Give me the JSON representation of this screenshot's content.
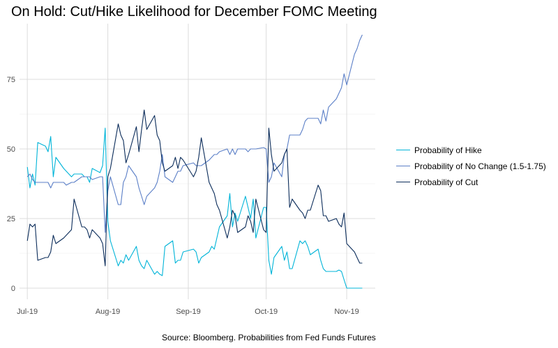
{
  "chart_data": {
    "type": "line",
    "title": "On Hold: Cut/Hike Likelihood for December FOMC Meeting",
    "caption": "Source: Bloomberg. Probabilities from Fed Funds Futures",
    "xlabel": "",
    "ylabel": "",
    "x_ticks": [
      "Jul-19",
      "Aug-19",
      "Sep-19",
      "Oct-19",
      "Nov-19"
    ],
    "x_tick_dates": [
      "2019-07-01",
      "2019-08-01",
      "2019-09-01",
      "2019-10-01",
      "2019-11-01"
    ],
    "y_ticks": [
      0,
      25,
      50,
      75
    ],
    "xlim": [
      "2019-06-28",
      "2019-11-12"
    ],
    "ylim": [
      -4,
      95
    ],
    "grid": true,
    "legend_position": "right",
    "series": [
      {
        "name": "Probability of Hike",
        "color": "#00b4d8",
        "points": [
          [
            "2019-07-01",
            43.5
          ],
          [
            "2019-07-02",
            36
          ],
          [
            "2019-07-03",
            41
          ],
          [
            "2019-07-04",
            37
          ],
          [
            "2019-07-05",
            52.3
          ],
          [
            "2019-07-08",
            51
          ],
          [
            "2019-07-09",
            49
          ],
          [
            "2019-07-10",
            54.5
          ],
          [
            "2019-07-11",
            40
          ],
          [
            "2019-07-12",
            47
          ],
          [
            "2019-07-15",
            43
          ],
          [
            "2019-07-16",
            42
          ],
          [
            "2019-07-18",
            40
          ],
          [
            "2019-07-19",
            41
          ],
          [
            "2019-07-22",
            41
          ],
          [
            "2019-07-23",
            40
          ],
          [
            "2019-07-24",
            40
          ],
          [
            "2019-07-25",
            38
          ],
          [
            "2019-07-26",
            43
          ],
          [
            "2019-07-29",
            41.5
          ],
          [
            "2019-07-30",
            44
          ],
          [
            "2019-07-31",
            57.5
          ],
          [
            "2019-08-01",
            24
          ],
          [
            "2019-08-02",
            17
          ],
          [
            "2019-08-05",
            8
          ],
          [
            "2019-08-06",
            10
          ],
          [
            "2019-08-07",
            9
          ],
          [
            "2019-08-08",
            12
          ],
          [
            "2019-08-09",
            10
          ],
          [
            "2019-08-12",
            15
          ],
          [
            "2019-08-13",
            10
          ],
          [
            "2019-08-14",
            8
          ],
          [
            "2019-08-15",
            7
          ],
          [
            "2019-08-16",
            10
          ],
          [
            "2019-08-19",
            5
          ],
          [
            "2019-08-20",
            6
          ],
          [
            "2019-08-21",
            5
          ],
          [
            "2019-08-22",
            4.5
          ],
          [
            "2019-08-23",
            15
          ],
          [
            "2019-08-26",
            17
          ],
          [
            "2019-08-27",
            9
          ],
          [
            "2019-08-28",
            10
          ],
          [
            "2019-08-29",
            10
          ],
          [
            "2019-08-30",
            13
          ],
          [
            "2019-09-03",
            14
          ],
          [
            "2019-09-04",
            13
          ],
          [
            "2019-09-05",
            9
          ],
          [
            "2019-09-06",
            11
          ],
          [
            "2019-09-09",
            13
          ],
          [
            "2019-09-10",
            15
          ],
          [
            "2019-09-11",
            14
          ],
          [
            "2019-09-12",
            18
          ],
          [
            "2019-09-13",
            22
          ],
          [
            "2019-09-16",
            26
          ],
          [
            "2019-09-17",
            34
          ],
          [
            "2019-09-18",
            22
          ],
          [
            "2019-09-19",
            27
          ],
          [
            "2019-09-20",
            24
          ],
          [
            "2019-09-23",
            33
          ],
          [
            "2019-09-24",
            29
          ],
          [
            "2019-09-25",
            25
          ],
          [
            "2019-09-26",
            32
          ],
          [
            "2019-09-27",
            18
          ],
          [
            "2019-09-30",
            29
          ],
          [
            "2019-10-01",
            29
          ],
          [
            "2019-10-02",
            10
          ],
          [
            "2019-10-03",
            5
          ],
          [
            "2019-10-04",
            11
          ],
          [
            "2019-10-07",
            15
          ],
          [
            "2019-10-08",
            10
          ],
          [
            "2019-10-09",
            13
          ],
          [
            "2019-10-10",
            7
          ],
          [
            "2019-10-11",
            7
          ],
          [
            "2019-10-14",
            17
          ],
          [
            "2019-10-15",
            16
          ],
          [
            "2019-10-16",
            17
          ],
          [
            "2019-10-17",
            15
          ],
          [
            "2019-10-18",
            12
          ],
          [
            "2019-10-21",
            14
          ],
          [
            "2019-10-22",
            10
          ],
          [
            "2019-10-23",
            7
          ],
          [
            "2019-10-24",
            6
          ],
          [
            "2019-10-25",
            6
          ],
          [
            "2019-10-28",
            6
          ],
          [
            "2019-10-29",
            6.5
          ],
          [
            "2019-10-30",
            6
          ],
          [
            "2019-10-31",
            3
          ],
          [
            "2019-11-01",
            0
          ],
          [
            "2019-11-04",
            0
          ],
          [
            "2019-11-05",
            0
          ],
          [
            "2019-11-06",
            0
          ],
          [
            "2019-11-07",
            0
          ]
        ]
      },
      {
        "name": "Probability of No Change (1.5-1.75)",
        "color": "#5b7fc7",
        "points": [
          [
            "2019-07-01",
            40
          ],
          [
            "2019-07-02",
            41
          ],
          [
            "2019-07-03",
            39
          ],
          [
            "2019-07-04",
            38
          ],
          [
            "2019-07-05",
            38
          ],
          [
            "2019-07-08",
            38
          ],
          [
            "2019-07-09",
            38
          ],
          [
            "2019-07-10",
            36
          ],
          [
            "2019-07-11",
            38
          ],
          [
            "2019-07-12",
            38
          ],
          [
            "2019-07-15",
            38
          ],
          [
            "2019-07-16",
            37
          ],
          [
            "2019-07-18",
            38
          ],
          [
            "2019-07-19",
            38
          ],
          [
            "2019-07-22",
            40
          ],
          [
            "2019-07-23",
            40
          ],
          [
            "2019-07-24",
            40
          ],
          [
            "2019-07-25",
            40
          ],
          [
            "2019-07-26",
            39
          ],
          [
            "2019-07-29",
            40
          ],
          [
            "2019-07-30",
            40
          ],
          [
            "2019-07-31",
            20
          ],
          [
            "2019-08-01",
            35
          ],
          [
            "2019-08-02",
            40
          ],
          [
            "2019-08-05",
            30
          ],
          [
            "2019-08-06",
            30
          ],
          [
            "2019-08-07",
            38
          ],
          [
            "2019-08-08",
            40
          ],
          [
            "2019-08-09",
            44
          ],
          [
            "2019-08-12",
            40
          ],
          [
            "2019-08-13",
            36
          ],
          [
            "2019-08-14",
            33
          ],
          [
            "2019-08-15",
            30
          ],
          [
            "2019-08-16",
            33
          ],
          [
            "2019-08-19",
            36
          ],
          [
            "2019-08-20",
            38
          ],
          [
            "2019-08-21",
            42
          ],
          [
            "2019-08-22",
            48
          ],
          [
            "2019-08-23",
            40
          ],
          [
            "2019-08-26",
            38
          ],
          [
            "2019-08-27",
            40
          ],
          [
            "2019-08-28",
            42
          ],
          [
            "2019-08-29",
            42
          ],
          [
            "2019-08-30",
            44
          ],
          [
            "2019-09-03",
            45
          ],
          [
            "2019-09-04",
            44
          ],
          [
            "2019-09-05",
            44
          ],
          [
            "2019-09-06",
            44
          ],
          [
            "2019-09-09",
            46
          ],
          [
            "2019-09-10",
            47
          ],
          [
            "2019-09-11",
            48
          ],
          [
            "2019-09-12",
            48
          ],
          [
            "2019-09-13",
            49
          ],
          [
            "2019-09-16",
            50
          ],
          [
            "2019-09-17",
            48
          ],
          [
            "2019-09-18",
            50
          ],
          [
            "2019-09-19",
            48
          ],
          [
            "2019-09-20",
            50
          ],
          [
            "2019-09-23",
            50
          ],
          [
            "2019-09-24",
            49
          ],
          [
            "2019-09-25",
            50
          ],
          [
            "2019-09-26",
            50
          ],
          [
            "2019-09-27",
            50
          ],
          [
            "2019-09-30",
            50.5
          ],
          [
            "2019-10-01",
            50
          ],
          [
            "2019-10-02",
            38
          ],
          [
            "2019-10-03",
            40
          ],
          [
            "2019-10-04",
            45
          ],
          [
            "2019-10-07",
            40
          ],
          [
            "2019-10-08",
            48
          ],
          [
            "2019-10-09",
            50
          ],
          [
            "2019-10-10",
            55
          ],
          [
            "2019-10-11",
            55
          ],
          [
            "2019-10-14",
            55
          ],
          [
            "2019-10-15",
            57
          ],
          [
            "2019-10-16",
            60
          ],
          [
            "2019-10-17",
            61
          ],
          [
            "2019-10-18",
            61
          ],
          [
            "2019-10-21",
            61
          ],
          [
            "2019-10-22",
            59
          ],
          [
            "2019-10-23",
            64
          ],
          [
            "2019-10-24",
            60
          ],
          [
            "2019-10-25",
            65
          ],
          [
            "2019-10-28",
            68
          ],
          [
            "2019-10-29",
            70
          ],
          [
            "2019-10-30",
            72
          ],
          [
            "2019-10-31",
            77
          ],
          [
            "2019-11-01",
            73
          ],
          [
            "2019-11-04",
            84
          ],
          [
            "2019-11-05",
            86
          ],
          [
            "2019-11-06",
            89
          ],
          [
            "2019-11-07",
            91
          ]
        ]
      },
      {
        "name": "Probability of Cut",
        "color": "#0b2c5a",
        "points": [
          [
            "2019-07-01",
            17
          ],
          [
            "2019-07-02",
            23
          ],
          [
            "2019-07-03",
            22
          ],
          [
            "2019-07-04",
            23
          ],
          [
            "2019-07-05",
            10
          ],
          [
            "2019-07-08",
            11
          ],
          [
            "2019-07-09",
            11
          ],
          [
            "2019-07-10",
            13
          ],
          [
            "2019-07-11",
            19
          ],
          [
            "2019-07-12",
            16
          ],
          [
            "2019-07-15",
            18
          ],
          [
            "2019-07-16",
            19
          ],
          [
            "2019-07-18",
            21
          ],
          [
            "2019-07-19",
            32
          ],
          [
            "2019-07-22",
            22
          ],
          [
            "2019-07-23",
            22
          ],
          [
            "2019-07-24",
            21
          ],
          [
            "2019-07-25",
            18
          ],
          [
            "2019-07-26",
            21
          ],
          [
            "2019-07-29",
            18
          ],
          [
            "2019-07-30",
            16
          ],
          [
            "2019-07-31",
            8
          ],
          [
            "2019-08-01",
            40
          ],
          [
            "2019-08-02",
            43
          ],
          [
            "2019-08-05",
            59
          ],
          [
            "2019-08-06",
            55
          ],
          [
            "2019-08-07",
            53
          ],
          [
            "2019-08-08",
            45
          ],
          [
            "2019-08-09",
            48
          ],
          [
            "2019-08-12",
            58
          ],
          [
            "2019-08-13",
            49
          ],
          [
            "2019-08-14",
            57
          ],
          [
            "2019-08-15",
            64
          ],
          [
            "2019-08-16",
            57
          ],
          [
            "2019-08-19",
            62
          ],
          [
            "2019-08-20",
            55
          ],
          [
            "2019-08-21",
            53
          ],
          [
            "2019-08-22",
            45
          ],
          [
            "2019-08-23",
            42
          ],
          [
            "2019-08-26",
            44
          ],
          [
            "2019-08-27",
            47
          ],
          [
            "2019-08-28",
            43
          ],
          [
            "2019-08-29",
            47
          ],
          [
            "2019-08-30",
            46
          ],
          [
            "2019-09-03",
            40
          ],
          [
            "2019-09-04",
            42
          ],
          [
            "2019-09-05",
            47
          ],
          [
            "2019-09-06",
            54
          ],
          [
            "2019-09-09",
            38
          ],
          [
            "2019-09-10",
            36
          ],
          [
            "2019-09-11",
            34
          ],
          [
            "2019-09-12",
            30
          ],
          [
            "2019-09-13",
            28
          ],
          [
            "2019-09-16",
            18
          ],
          [
            "2019-09-17",
            22
          ],
          [
            "2019-09-18",
            28
          ],
          [
            "2019-09-19",
            26
          ],
          [
            "2019-09-20",
            20
          ],
          [
            "2019-09-23",
            22
          ],
          [
            "2019-09-24",
            26
          ],
          [
            "2019-09-25",
            24
          ],
          [
            "2019-09-26",
            20
          ],
          [
            "2019-09-27",
            32
          ],
          [
            "2019-09-30",
            21
          ],
          [
            "2019-10-01",
            20
          ],
          [
            "2019-10-02",
            57.5
          ],
          [
            "2019-10-03",
            48
          ],
          [
            "2019-10-04",
            42
          ],
          [
            "2019-10-07",
            45
          ],
          [
            "2019-10-08",
            48
          ],
          [
            "2019-10-09",
            50
          ],
          [
            "2019-10-10",
            29
          ],
          [
            "2019-10-11",
            32
          ],
          [
            "2019-10-14",
            28
          ],
          [
            "2019-10-15",
            27
          ],
          [
            "2019-10-16",
            25
          ],
          [
            "2019-10-17",
            28
          ],
          [
            "2019-10-18",
            28
          ],
          [
            "2019-10-21",
            37
          ],
          [
            "2019-10-22",
            35
          ],
          [
            "2019-10-23",
            26
          ],
          [
            "2019-10-24",
            26
          ],
          [
            "2019-10-25",
            24
          ],
          [
            "2019-10-28",
            25
          ],
          [
            "2019-10-29",
            23
          ],
          [
            "2019-10-30",
            22
          ],
          [
            "2019-10-31",
            27
          ],
          [
            "2019-11-01",
            16
          ],
          [
            "2019-11-04",
            13
          ],
          [
            "2019-11-05",
            11
          ],
          [
            "2019-11-06",
            9
          ],
          [
            "2019-11-07",
            9
          ]
        ]
      }
    ]
  }
}
